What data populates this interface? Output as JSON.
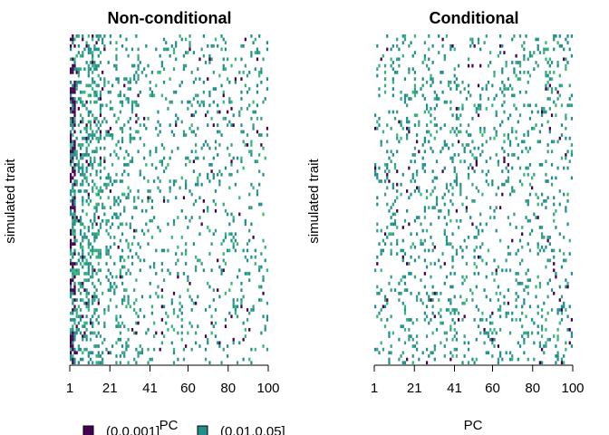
{
  "colors": {
    "level1": "#440154",
    "level2": "#21908C",
    "level3": "#3a9e86",
    "level4": "#35b779"
  },
  "chart_data": [
    {
      "type": "heatmap",
      "title": "Non-conditional",
      "xlabel": "PC",
      "ylabel": "simulated trait",
      "x_ticks": [
        "1",
        "21",
        "41",
        "60",
        "80",
        "100"
      ],
      "xlim": [
        1,
        100
      ],
      "n_rows": 100,
      "density_profile": "high-left",
      "cells_note": "sparse cells; strongest at PC 1-15"
    },
    {
      "type": "heatmap",
      "title": "Conditional",
      "xlabel": "PC",
      "ylabel": "simulated trait",
      "x_ticks": [
        "1",
        "21",
        "41",
        "60",
        "80",
        "100"
      ],
      "xlim": [
        1,
        100
      ],
      "n_rows": 100,
      "density_profile": "uniform",
      "cells_note": "sparse cells spread uniformly"
    }
  ],
  "legend": {
    "items": [
      {
        "label": "(0,0.001]",
        "color": "#440154"
      },
      {
        "label": "(0.01,0.05]",
        "color": "#21908C"
      }
    ]
  }
}
